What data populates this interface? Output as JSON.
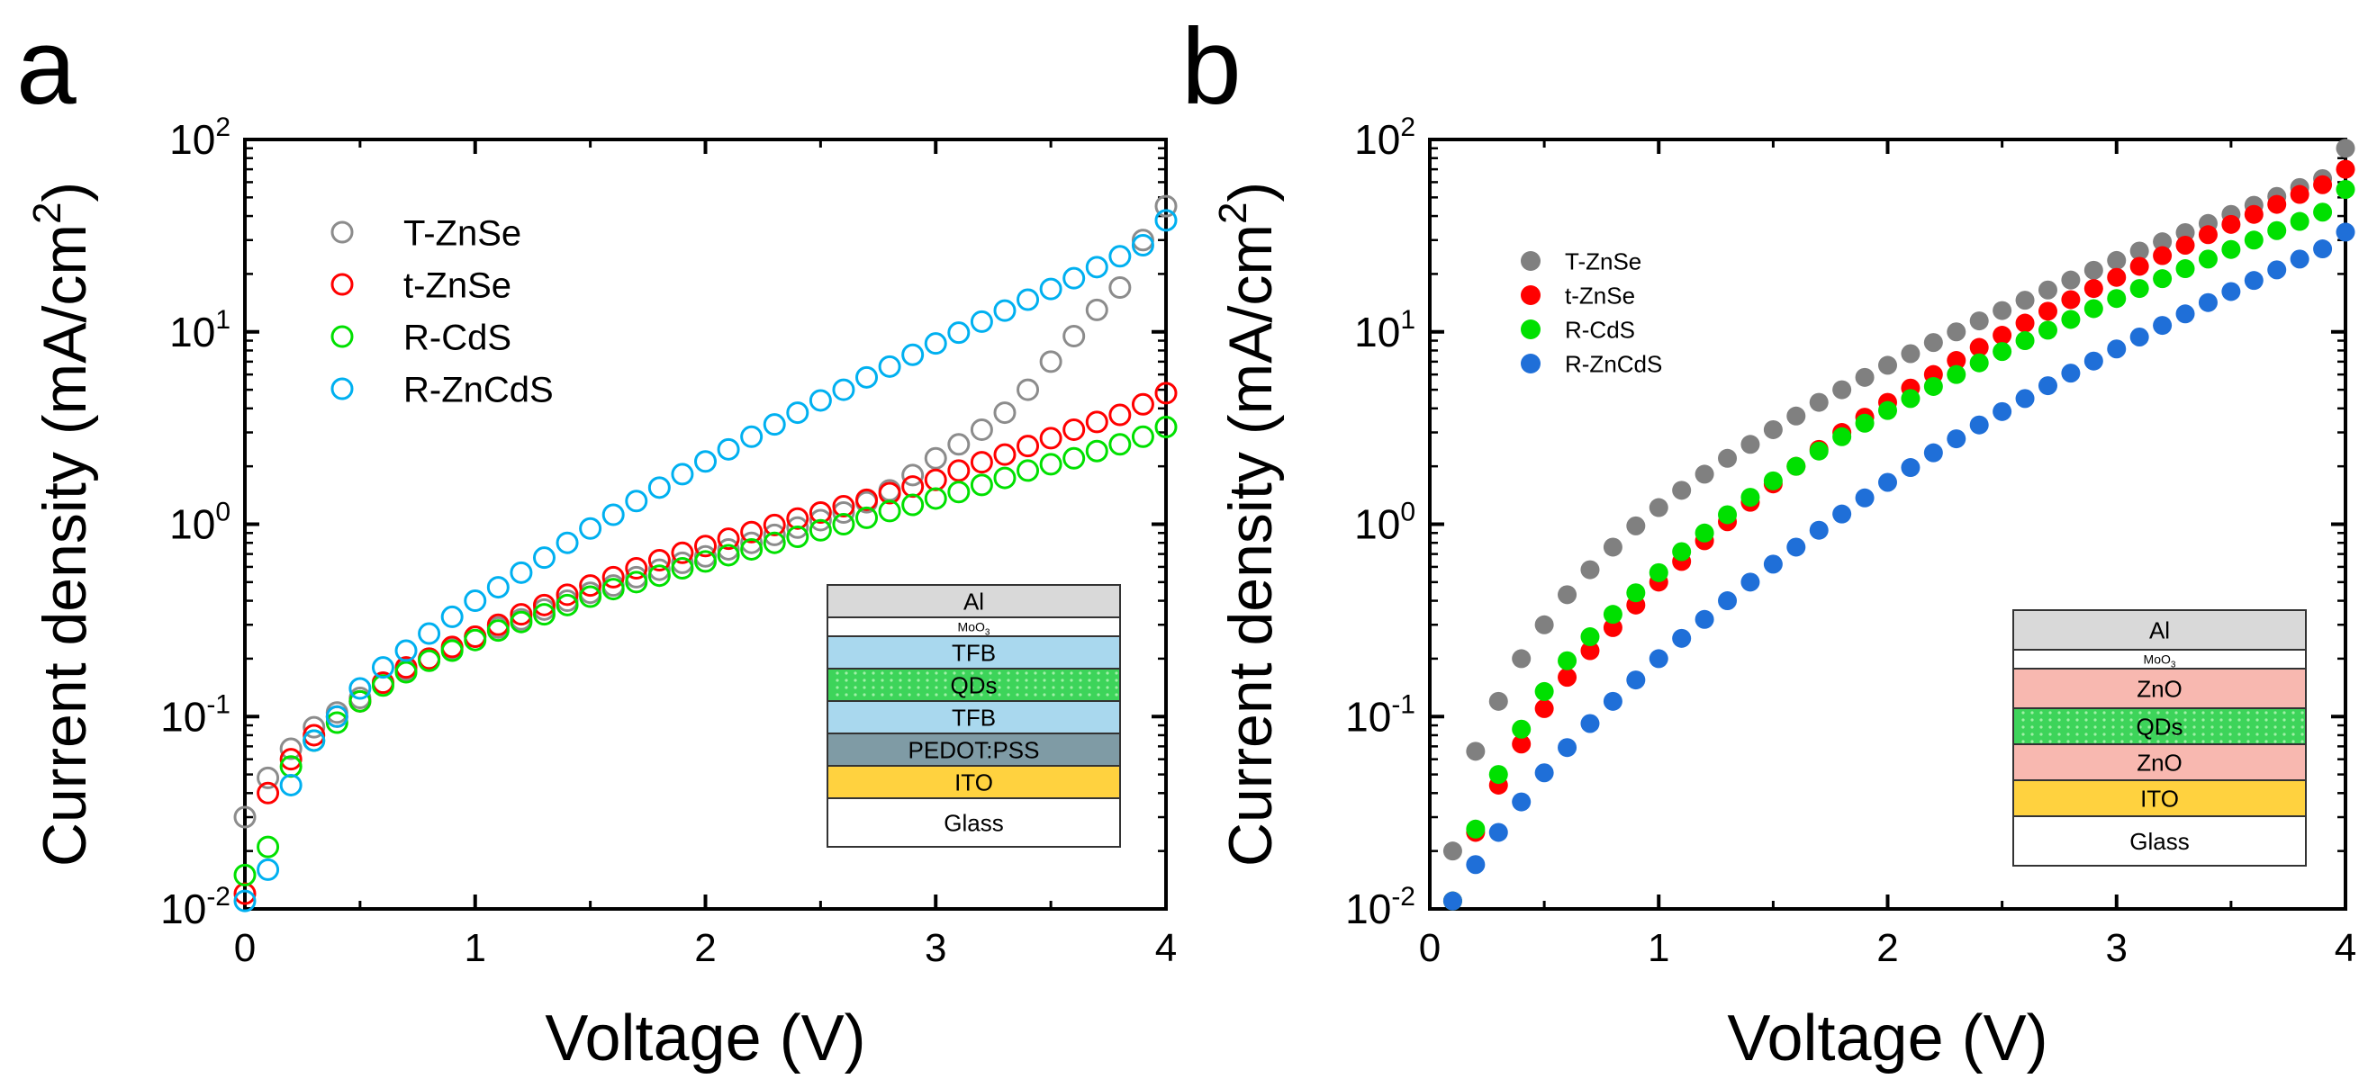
{
  "panels": [
    {
      "panel_label": "a",
      "xlabel": "Voltage (V)",
      "ylabel_main": "Current density (mA/cm",
      "ylabel_sup": "2",
      "ylabel_close": ")",
      "x_ticks": [
        "0",
        "1",
        "2",
        "3",
        "4"
      ],
      "y_ticks": [
        {
          "base": "10",
          "exp": "-2"
        },
        {
          "base": "10",
          "exp": "-1"
        },
        {
          "base": "10",
          "exp": "0"
        },
        {
          "base": "10",
          "exp": "1"
        },
        {
          "base": "10",
          "exp": "2"
        }
      ],
      "legend": [
        "T-ZnSe",
        "t-ZnSe",
        "R-CdS",
        "R-ZnCdS"
      ],
      "device_stack": {
        "layers": [
          {
            "label": "Al",
            "color": "#d9d9d9"
          },
          {
            "label": "MoO",
            "sub": "3",
            "color": "#ffffff"
          },
          {
            "label": "TFB",
            "color": "#a9d8ee"
          },
          {
            "label": "QDs",
            "color": "#3dd45a"
          },
          {
            "label": "TFB",
            "color": "#a9d8ee"
          },
          {
            "label": "PEDOT:PSS",
            "color": "#7f9ba5"
          },
          {
            "label": "ITO",
            "color": "#ffd23f"
          },
          {
            "label": "Glass",
            "color": "#ffffff"
          }
        ]
      }
    },
    {
      "panel_label": "b",
      "xlabel": "Voltage (V)",
      "ylabel_main": "Current density (mA/cm",
      "ylabel_sup": "2",
      "ylabel_close": ")",
      "x_ticks": [
        "0",
        "1",
        "2",
        "3",
        "4"
      ],
      "y_ticks": [
        {
          "base": "10",
          "exp": "-2"
        },
        {
          "base": "10",
          "exp": "-1"
        },
        {
          "base": "10",
          "exp": "0"
        },
        {
          "base": "10",
          "exp": "1"
        },
        {
          "base": "10",
          "exp": "2"
        }
      ],
      "legend": [
        "T-ZnSe",
        "t-ZnSe",
        "R-CdS",
        "R-ZnCdS"
      ],
      "device_stack": {
        "layers": [
          {
            "label": "Al",
            "color": "#d9d9d9"
          },
          {
            "label": "MoO",
            "sub": "3",
            "color": "#ffffff"
          },
          {
            "label": "ZnO",
            "color": "#f8b8b0"
          },
          {
            "label": "QDs",
            "color": "#3dd45a"
          },
          {
            "label": "ZnO",
            "color": "#f8b8b0"
          },
          {
            "label": "ITO",
            "color": "#ffd23f"
          },
          {
            "label": "Glass",
            "color": "#ffffff"
          }
        ]
      }
    }
  ],
  "chart_data": [
    {
      "type": "scatter",
      "title": "",
      "xlabel": "Voltage (V)",
      "ylabel": "Current density (mA/cm2)",
      "xlim": [
        0,
        4
      ],
      "ylim": [
        0.01,
        100
      ],
      "yscale": "log",
      "marker": "open-circle",
      "legend_position": "top-left",
      "series": [
        {
          "name": "T-ZnSe",
          "color": "#8c8c8c",
          "x": [
            0,
            0.1,
            0.2,
            0.3,
            0.4,
            0.5,
            0.6,
            0.7,
            0.8,
            0.9,
            1.0,
            1.1,
            1.2,
            1.3,
            1.4,
            1.5,
            1.6,
            1.7,
            1.8,
            1.9,
            2.0,
            2.1,
            2.2,
            2.3,
            2.4,
            2.5,
            2.6,
            2.7,
            2.8,
            2.9,
            3.0,
            3.1,
            3.2,
            3.3,
            3.4,
            3.5,
            3.6,
            3.7,
            3.8,
            3.9,
            4.0
          ],
          "y": [
            0.03,
            0.048,
            0.068,
            0.088,
            0.105,
            0.125,
            0.15,
            0.175,
            0.2,
            0.225,
            0.26,
            0.29,
            0.32,
            0.36,
            0.4,
            0.44,
            0.48,
            0.53,
            0.58,
            0.63,
            0.68,
            0.74,
            0.8,
            0.88,
            0.96,
            1.05,
            1.15,
            1.3,
            1.5,
            1.8,
            2.2,
            2.6,
            3.1,
            3.8,
            5.0,
            7.0,
            9.5,
            13,
            17,
            30,
            45
          ]
        },
        {
          "name": "t-ZnSe",
          "color": "#ff0000",
          "x": [
            0,
            0.1,
            0.2,
            0.3,
            0.4,
            0.5,
            0.6,
            0.7,
            0.8,
            0.9,
            1.0,
            1.1,
            1.2,
            1.3,
            1.4,
            1.5,
            1.6,
            1.7,
            1.8,
            1.9,
            2.0,
            2.1,
            2.2,
            2.3,
            2.4,
            2.5,
            2.6,
            2.7,
            2.8,
            2.9,
            3.0,
            3.1,
            3.2,
            3.3,
            3.4,
            3.5,
            3.6,
            3.7,
            3.8,
            3.9,
            4.0
          ],
          "y": [
            0.012,
            0.04,
            0.06,
            0.08,
            0.1,
            0.12,
            0.15,
            0.18,
            0.2,
            0.23,
            0.26,
            0.3,
            0.34,
            0.38,
            0.43,
            0.48,
            0.53,
            0.59,
            0.65,
            0.71,
            0.77,
            0.84,
            0.91,
            0.99,
            1.07,
            1.15,
            1.24,
            1.34,
            1.45,
            1.57,
            1.7,
            1.9,
            2.1,
            2.3,
            2.55,
            2.8,
            3.1,
            3.4,
            3.7,
            4.2,
            4.8
          ]
        },
        {
          "name": "R-CdS",
          "color": "#00e000",
          "x": [
            0,
            0.1,
            0.2,
            0.3,
            0.4,
            0.5,
            0.6,
            0.7,
            0.8,
            0.9,
            1.0,
            1.1,
            1.2,
            1.3,
            1.4,
            1.5,
            1.6,
            1.7,
            1.8,
            1.9,
            2.0,
            2.1,
            2.2,
            2.3,
            2.4,
            2.5,
            2.6,
            2.7,
            2.8,
            2.9,
            3.0,
            3.1,
            3.2,
            3.3,
            3.4,
            3.5,
            3.6,
            3.7,
            3.8,
            3.9,
            4.0
          ],
          "y": [
            0.015,
            0.021,
            0.055,
            0.075,
            0.093,
            0.12,
            0.145,
            0.17,
            0.195,
            0.22,
            0.25,
            0.28,
            0.31,
            0.34,
            0.38,
            0.42,
            0.46,
            0.5,
            0.54,
            0.59,
            0.64,
            0.69,
            0.74,
            0.8,
            0.86,
            0.93,
            1.0,
            1.08,
            1.17,
            1.26,
            1.36,
            1.47,
            1.6,
            1.74,
            1.9,
            2.05,
            2.2,
            2.4,
            2.6,
            2.85,
            3.2
          ]
        },
        {
          "name": "R-ZnCdS",
          "color": "#00b0f0",
          "x": [
            0,
            0.1,
            0.2,
            0.3,
            0.4,
            0.5,
            0.6,
            0.7,
            0.8,
            0.9,
            1.0,
            1.1,
            1.2,
            1.3,
            1.4,
            1.5,
            1.6,
            1.7,
            1.8,
            1.9,
            2.0,
            2.1,
            2.2,
            2.3,
            2.4,
            2.5,
            2.6,
            2.7,
            2.8,
            2.9,
            3.0,
            3.1,
            3.2,
            3.3,
            3.4,
            3.5,
            3.6,
            3.7,
            3.8,
            3.9,
            4.0
          ],
          "y": [
            0.011,
            0.016,
            0.044,
            0.075,
            0.1,
            0.14,
            0.18,
            0.22,
            0.27,
            0.33,
            0.4,
            0.47,
            0.56,
            0.67,
            0.8,
            0.95,
            1.12,
            1.32,
            1.55,
            1.82,
            2.12,
            2.45,
            2.85,
            3.3,
            3.8,
            4.4,
            5.0,
            5.8,
            6.6,
            7.6,
            8.7,
            9.9,
            11.3,
            12.9,
            14.7,
            16.7,
            19.0,
            21.7,
            24.7,
            28.2,
            38.0
          ]
        }
      ]
    },
    {
      "type": "scatter",
      "title": "",
      "xlabel": "Voltage (V)",
      "ylabel": "Current density (mA/cm2)",
      "xlim": [
        0,
        4
      ],
      "ylim": [
        0.01,
        100
      ],
      "yscale": "log",
      "marker": "filled-circle",
      "legend_position": "top-left",
      "series": [
        {
          "name": "T-ZnSe",
          "color": "#808080",
          "x": [
            0.1,
            0.2,
            0.3,
            0.4,
            0.5,
            0.6,
            0.7,
            0.8,
            0.9,
            1.0,
            1.1,
            1.2,
            1.3,
            1.4,
            1.5,
            1.6,
            1.7,
            1.8,
            1.9,
            2.0,
            2.1,
            2.2,
            2.3,
            2.4,
            2.5,
            2.6,
            2.7,
            2.8,
            2.9,
            3.0,
            3.1,
            3.2,
            3.3,
            3.4,
            3.5,
            3.6,
            3.7,
            3.8,
            3.9,
            4.0
          ],
          "y": [
            0.02,
            0.066,
            0.12,
            0.2,
            0.3,
            0.43,
            0.58,
            0.76,
            0.98,
            1.22,
            1.5,
            1.82,
            2.2,
            2.6,
            3.1,
            3.65,
            4.3,
            5.0,
            5.8,
            6.7,
            7.7,
            8.8,
            10.0,
            11.4,
            12.9,
            14.6,
            16.5,
            18.6,
            20.9,
            23.5,
            26.3,
            29.4,
            32.8,
            36.6,
            40.8,
            45.5,
            50.6,
            56.3,
            62.6,
            90
          ]
        },
        {
          "name": "t-ZnSe",
          "color": "#ff0000",
          "x": [
            0.1,
            0.2,
            0.3,
            0.4,
            0.5,
            0.6,
            0.7,
            0.8,
            0.9,
            1.0,
            1.1,
            1.2,
            1.3,
            1.4,
            1.5,
            1.6,
            1.7,
            1.8,
            1.9,
            2.0,
            2.1,
            2.2,
            2.3,
            2.4,
            2.5,
            2.6,
            2.7,
            2.8,
            2.9,
            3.0,
            3.1,
            3.2,
            3.3,
            3.4,
            3.5,
            3.6,
            3.7,
            3.8,
            3.9,
            4.0
          ],
          "y": [
            0.011,
            0.025,
            0.044,
            0.072,
            0.11,
            0.16,
            0.22,
            0.29,
            0.38,
            0.5,
            0.64,
            0.82,
            1.03,
            1.3,
            1.62,
            2.0,
            2.45,
            3.0,
            3.6,
            4.3,
            5.1,
            6.0,
            7.1,
            8.3,
            9.6,
            11.1,
            12.8,
            14.7,
            16.8,
            19.2,
            21.9,
            24.9,
            28.2,
            32.0,
            36.2,
            40.8,
            46.0,
            51.8,
            58.2,
            70
          ]
        },
        {
          "name": "R-CdS",
          "color": "#00e000",
          "x": [
            0.1,
            0.2,
            0.3,
            0.4,
            0.5,
            0.6,
            0.7,
            0.8,
            0.9,
            1.0,
            1.1,
            1.2,
            1.3,
            1.4,
            1.5,
            1.6,
            1.7,
            1.8,
            1.9,
            2.0,
            2.1,
            2.2,
            2.3,
            2.4,
            2.5,
            2.6,
            2.7,
            2.8,
            2.9,
            3.0,
            3.1,
            3.2,
            3.3,
            3.4,
            3.5,
            3.6,
            3.7,
            3.8,
            3.9,
            4.0
          ],
          "y": [
            0.011,
            0.026,
            0.05,
            0.086,
            0.135,
            0.195,
            0.26,
            0.34,
            0.44,
            0.56,
            0.72,
            0.9,
            1.12,
            1.38,
            1.68,
            2.0,
            2.4,
            2.85,
            3.35,
            3.9,
            4.5,
            5.2,
            6.0,
            6.9,
            7.9,
            9.0,
            10.2,
            11.6,
            13.2,
            14.9,
            16.8,
            18.9,
            21.3,
            23.9,
            26.8,
            30.0,
            33.6,
            37.5,
            41.9,
            55
          ]
        },
        {
          "name": "R-ZnCdS",
          "color": "#1f6fd8",
          "x": [
            0.1,
            0.2,
            0.3,
            0.4,
            0.5,
            0.6,
            0.7,
            0.8,
            0.9,
            1.0,
            1.1,
            1.2,
            1.3,
            1.4,
            1.5,
            1.6,
            1.7,
            1.8,
            1.9,
            2.0,
            2.1,
            2.2,
            2.3,
            2.4,
            2.5,
            2.6,
            2.7,
            2.8,
            2.9,
            3.0,
            3.1,
            3.2,
            3.3,
            3.4,
            3.5,
            3.6,
            3.7,
            3.8,
            3.9,
            4.0
          ],
          "y": [
            0.011,
            0.017,
            0.025,
            0.036,
            0.051,
            0.069,
            0.092,
            0.12,
            0.155,
            0.2,
            0.255,
            0.32,
            0.4,
            0.5,
            0.62,
            0.76,
            0.93,
            1.13,
            1.37,
            1.65,
            1.97,
            2.35,
            2.78,
            3.28,
            3.85,
            4.5,
            5.25,
            6.1,
            7.05,
            8.15,
            9.4,
            10.8,
            12.4,
            14.2,
            16.2,
            18.5,
            21.0,
            23.9,
            27.0,
            33
          ]
        }
      ]
    }
  ]
}
